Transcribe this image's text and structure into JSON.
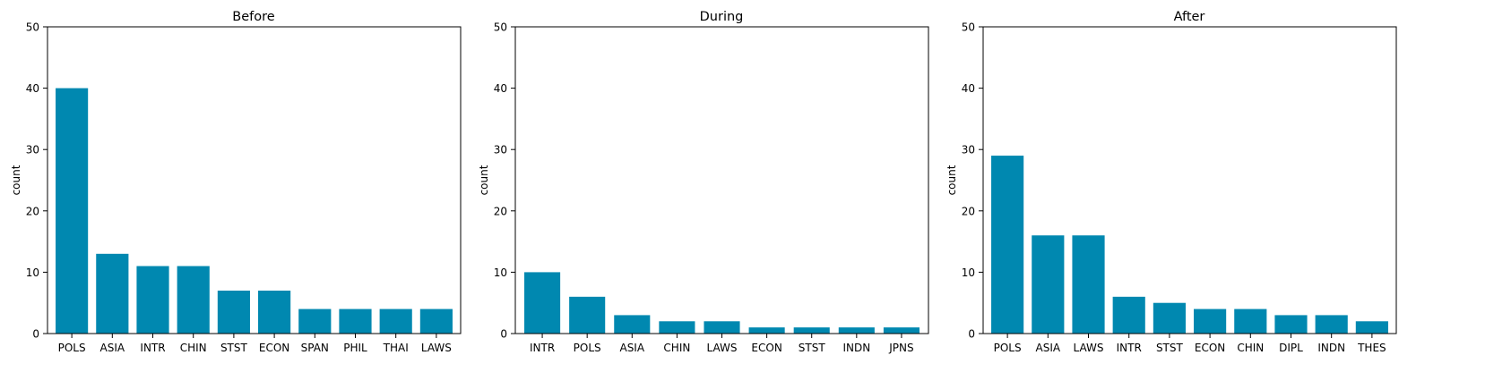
{
  "chart_data": [
    {
      "type": "bar",
      "title": "Before",
      "ylabel": "count",
      "xlabel": "",
      "ylim": [
        0,
        50
      ],
      "yticks": [
        0,
        10,
        20,
        30,
        40,
        50
      ],
      "categories": [
        "POLS",
        "ASIA",
        "INTR",
        "CHIN",
        "STST",
        "ECON",
        "SPAN",
        "PHIL",
        "THAI",
        "LAWS"
      ],
      "values": [
        40,
        13,
        11,
        11,
        7,
        7,
        4,
        4,
        4,
        4
      ],
      "color": "#0088b0",
      "grid": false
    },
    {
      "type": "bar",
      "title": "During",
      "ylabel": "count",
      "xlabel": "",
      "ylim": [
        0,
        50
      ],
      "yticks": [
        0,
        10,
        20,
        30,
        40,
        50
      ],
      "categories": [
        "INTR",
        "POLS",
        "ASIA",
        "CHIN",
        "LAWS",
        "ECON",
        "STST",
        "INDN",
        "JPNS"
      ],
      "values": [
        10,
        6,
        3,
        2,
        2,
        1,
        1,
        1,
        1
      ],
      "color": "#0088b0",
      "grid": false
    },
    {
      "type": "bar",
      "title": "After",
      "ylabel": "count",
      "xlabel": "",
      "ylim": [
        0,
        50
      ],
      "yticks": [
        0,
        10,
        20,
        30,
        40,
        50
      ],
      "categories": [
        "POLS",
        "ASIA",
        "LAWS",
        "INTR",
        "STST",
        "ECON",
        "CHIN",
        "DIPL",
        "INDN",
        "THES"
      ],
      "values": [
        29,
        16,
        16,
        6,
        5,
        4,
        4,
        3,
        3,
        2
      ],
      "color": "#0088b0",
      "grid": false
    }
  ]
}
